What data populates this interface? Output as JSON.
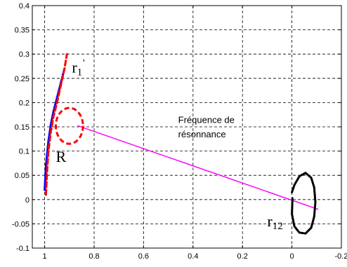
{
  "chart_data": {
    "type": "line",
    "title": "",
    "xlabel": "",
    "ylabel": "",
    "xlim": [
      1.05,
      -0.2
    ],
    "ylim": [
      -0.1,
      0.4
    ],
    "x_axis_reversed": true,
    "grid": true,
    "grid_style": "dashed",
    "x_ticks": [
      1,
      0.8,
      0.6,
      0.4,
      0.2,
      0,
      -0.2
    ],
    "x_tick_labels": [
      "1",
      "0.8",
      "0.6",
      "0.4",
      "0.2",
      "0",
      "-0.2"
    ],
    "y_ticks": [
      -0.1,
      -0.05,
      0,
      0.05,
      0.1,
      0.15,
      0.2,
      0.25,
      0.3,
      0.35,
      0.4
    ],
    "y_tick_labels": [
      "-0.1",
      "-0.05",
      "0",
      "0.05",
      "0.1",
      "0.15",
      "0.2",
      "0.25",
      "0.3",
      "0.35",
      "0.4"
    ],
    "series": [
      {
        "color": "#0000ff",
        "style": "solid",
        "x": [
          1.0,
          0.995,
          0.985,
          0.975,
          0.965,
          0.95,
          0.935,
          0.92
        ],
        "y": [
          0.02,
          0.07,
          0.12,
          0.155,
          0.18,
          0.21,
          0.24,
          0.27
        ]
      },
      {
        "color": "#ff0000",
        "style": "dashed",
        "x": [
          0.995,
          0.99,
          0.985,
          0.975,
          0.965,
          0.95,
          0.935,
          0.92,
          0.91
        ],
        "y": [
          0.01,
          0.06,
          0.1,
          0.14,
          0.17,
          0.2,
          0.235,
          0.27,
          0.3
        ]
      },
      {
        "color": "#ff00ff",
        "style": "solid",
        "x": [
          0.865,
          -0.105
        ],
        "y": [
          0.152,
          -0.02
        ]
      },
      {
        "color": "#000000",
        "style": "solid",
        "x": [
          -0.002,
          -0.002,
          0.0,
          -0.01,
          -0.03,
          -0.055,
          -0.078,
          -0.09,
          -0.095,
          -0.09,
          -0.078,
          -0.055,
          -0.03,
          -0.01,
          0.0
        ],
        "y": [
          0.003,
          0.0,
          -0.03,
          -0.055,
          -0.068,
          -0.07,
          -0.058,
          -0.035,
          -0.005,
          0.025,
          0.045,
          0.055,
          0.048,
          0.03,
          0.015
        ]
      }
    ],
    "ellipses": [
      {
        "color": "#ff0000",
        "style": "dashed",
        "cx": 0.9,
        "cy": 0.152,
        "rx": 0.055,
        "ry": 0.037
      }
    ],
    "annotations": [
      {
        "text": "r",
        "sub": "1",
        "sup": "’",
        "x": 0.89,
        "y": 0.262
      },
      {
        "text": "R",
        "x": 0.955,
        "y": 0.078
      },
      {
        "text": "Fréquence de",
        "x": 0.46,
        "y": 0.158
      },
      {
        "text": "résonnance",
        "x": 0.46,
        "y": 0.128
      },
      {
        "text": "r",
        "sub": "12",
        "x": 0.1,
        "y": -0.055
      }
    ]
  }
}
